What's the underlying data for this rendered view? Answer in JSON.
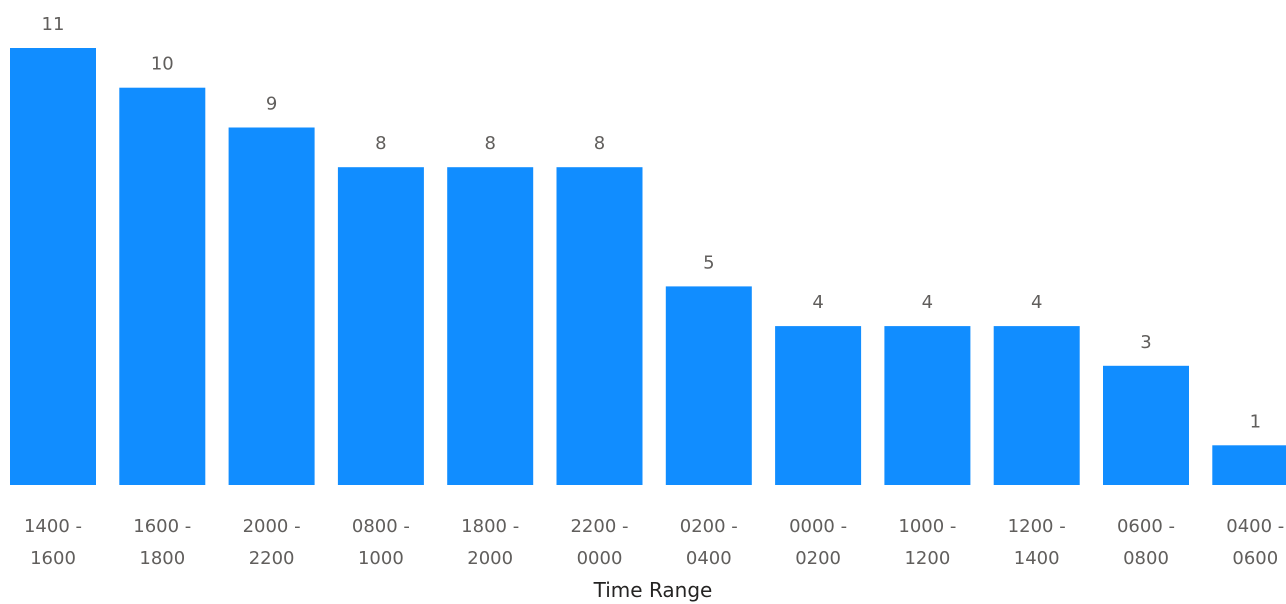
{
  "chart_data": {
    "type": "bar",
    "xlabel": "Time Range",
    "ylabel": "",
    "categories": [
      [
        "1400 -",
        "1600"
      ],
      [
        "1600 -",
        "1800"
      ],
      [
        "2000 -",
        "2200"
      ],
      [
        "0800 -",
        "1000"
      ],
      [
        "1800 -",
        "2000"
      ],
      [
        "2200 -",
        "0000"
      ],
      [
        "0200 -",
        "0400"
      ],
      [
        "0000 -",
        "0200"
      ],
      [
        "1000 -",
        "1200"
      ],
      [
        "1200 -",
        "1400"
      ],
      [
        "0600 -",
        "0800"
      ],
      [
        "0400 -",
        "0600"
      ]
    ],
    "values": [
      11,
      10,
      9,
      8,
      8,
      8,
      5,
      4,
      4,
      4,
      3,
      1
    ],
    "ylim": [
      0,
      11
    ],
    "grid": false,
    "legend": "none",
    "bar_color": "#118dff"
  }
}
